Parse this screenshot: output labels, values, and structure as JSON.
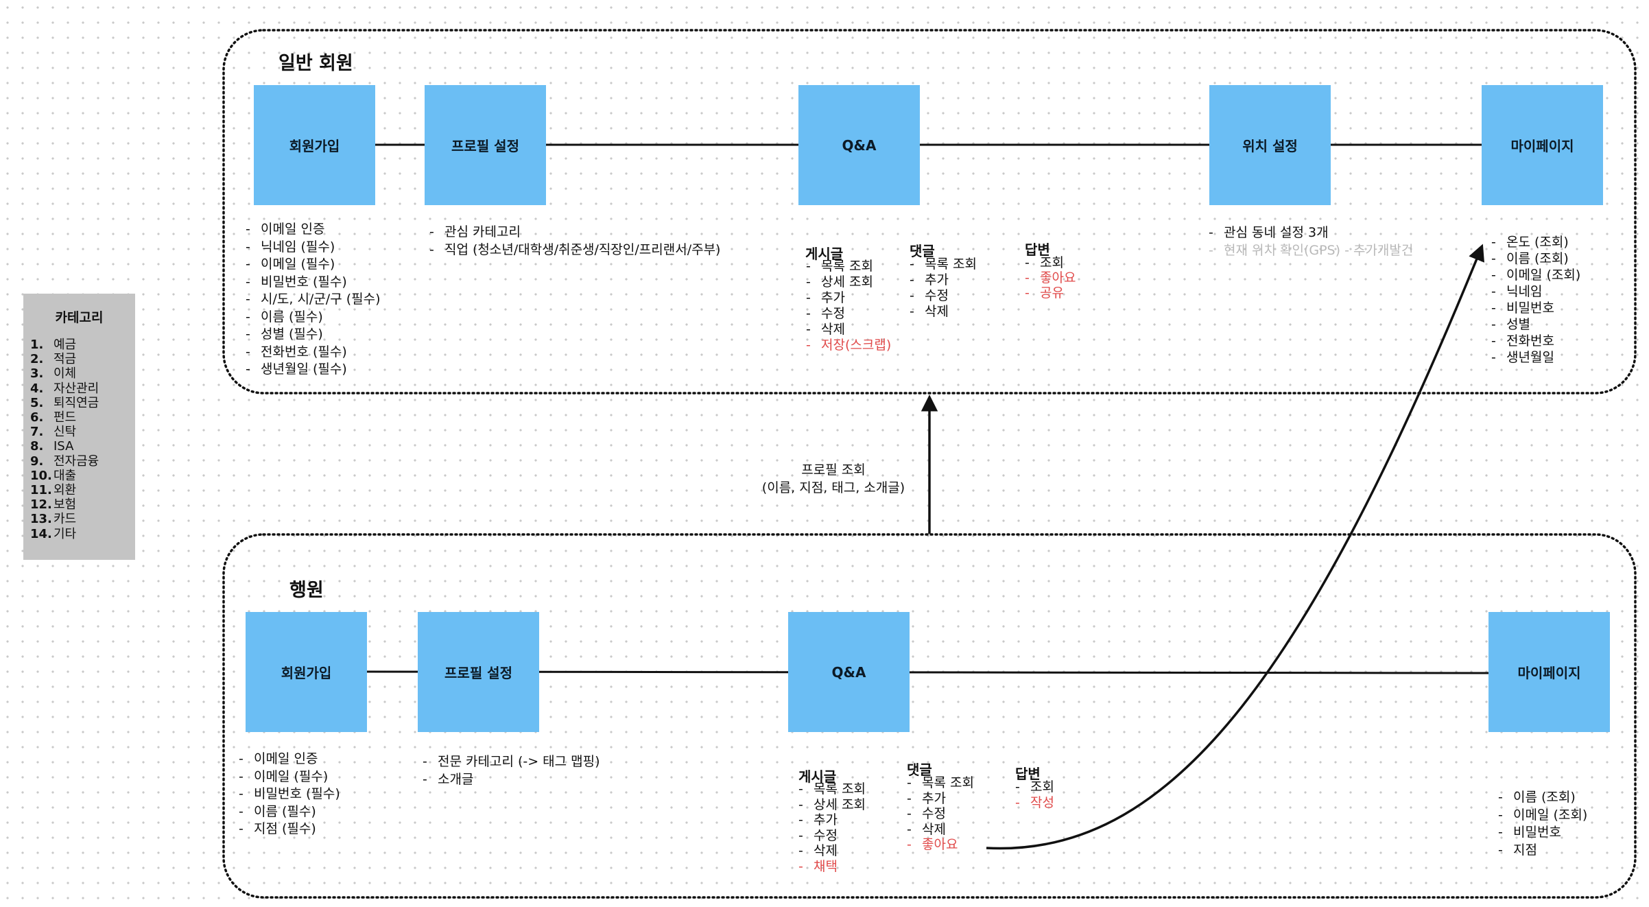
{
  "groups": {
    "general": {
      "title": "일반 회원",
      "nodes": [
        "회원가입",
        "프로필 설정",
        "Q&A",
        "위치 설정",
        "마이페이지"
      ],
      "signup_items": [
        "이메일 인증",
        "닉네임 (필수)",
        "이메일 (필수)",
        "비밀번호 (필수)",
        "시/도, 시/군/구 (필수)",
        "이름 (필수)",
        "성별 (필수)",
        "전화번호 (필수)",
        "생년월일 (필수)"
      ],
      "profile_items": [
        "관심 카테고리",
        "직업 (청소년/대학생/취준생/직장인/프리랜서/주부)"
      ],
      "qa": {
        "post": {
          "title": "게시글",
          "items": [
            "목록 조회",
            "상세 조회",
            "추가",
            "수정",
            "삭제"
          ],
          "red_items": [
            "저장(스크랩)"
          ]
        },
        "comment": {
          "title": "댓글",
          "items": [
            "목록 조회",
            "추가",
            "수정",
            "삭제"
          ]
        },
        "answer": {
          "title": "답변",
          "items": [
            "조회"
          ],
          "red_items": [
            "좋아요",
            "공유"
          ]
        }
      },
      "location_items": [
        "관심 동네 설정 3개"
      ],
      "location_gray_items": [
        "현재 위치 확인(GPS) - 추가개발건"
      ],
      "mypage_items": [
        "온도 (조회)",
        "이름 (조회)",
        "이메일 (조회)",
        "닉네임",
        "비밀번호",
        "성별",
        "전화번호",
        "생년월일"
      ]
    },
    "banker": {
      "title": "행원",
      "nodes": [
        "회원가입",
        "프로필 설정",
        "Q&A",
        "마이페이지"
      ],
      "signup_items": [
        "이메일 인증",
        "이메일 (필수)",
        "비밀번호 (필수)",
        "이름 (필수)",
        "지점 (필수)"
      ],
      "profile_items": [
        "전문 카테고리 (-> 태그 맵핑)",
        "소개글"
      ],
      "qa": {
        "post": {
          "title": "게시글",
          "items": [
            "목록 조회",
            "상세 조회",
            "추가",
            "수정",
            "삭제"
          ],
          "red_items": [
            "채택"
          ]
        },
        "comment": {
          "title": "댓글",
          "items": [
            "목록 조회",
            "추가",
            "수정",
            "삭제"
          ],
          "red_items": [
            "좋아요"
          ]
        },
        "answer": {
          "title": "답변",
          "items": [
            "조회"
          ],
          "red_items": [
            "작성"
          ]
        }
      },
      "mypage_items": [
        "이름 (조회)",
        "이메일 (조회)",
        "비밀번호",
        "지점"
      ]
    }
  },
  "profile_view": {
    "line1": "프로필 조회",
    "line2": "(이름, 지점, 태그, 소개글)"
  },
  "category": {
    "title": "카테고리",
    "items": [
      {
        "num": "1.",
        "label": "예금"
      },
      {
        "num": "2.",
        "label": "적금"
      },
      {
        "num": "3.",
        "label": "이체"
      },
      {
        "num": "4.",
        "label": "자산관리"
      },
      {
        "num": "5.",
        "label": "퇴직연금"
      },
      {
        "num": "6.",
        "label": "펀드"
      },
      {
        "num": "7.",
        "label": "신탁"
      },
      {
        "num": "8.",
        "label": "ISA"
      },
      {
        "num": "9.",
        "label": "전자금융"
      },
      {
        "num": "10.",
        "label": "대출"
      },
      {
        "num": "11.",
        "label": "외환"
      },
      {
        "num": "12.",
        "label": "보험"
      },
      {
        "num": "13.",
        "label": "카드"
      },
      {
        "num": "14.",
        "label": "기타"
      }
    ]
  },
  "colors": {
    "node": "#6bbef4",
    "red": "#e04a4a",
    "gray": "#b8b8b8",
    "category_bg": "#c4c4c4"
  }
}
